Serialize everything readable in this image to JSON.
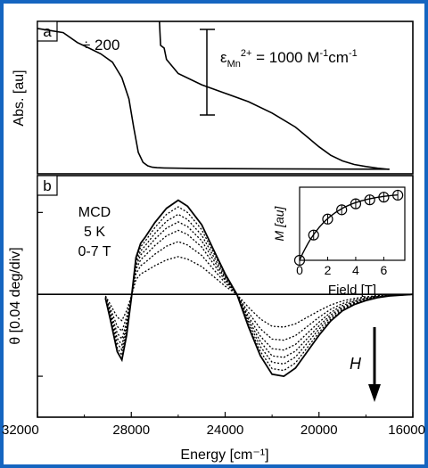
{
  "frame_color": "#1565c0",
  "chart_data": [
    {
      "panel": "a",
      "type": "line",
      "ylabel": "Abs. [au]",
      "xlim": [
        32000,
        16000
      ],
      "annotations": {
        "scale": "÷ 200",
        "epsilon_main": "ε",
        "epsilon_sub": "Mn",
        "epsilon_sup": "2+",
        "epsilon_eq": " = 1000 M",
        "epsilon_unit1_sup": "-1",
        "epsilon_unit2": "cm",
        "epsilon_unit2_sup": "-1"
      },
      "series": [
        {
          "x": [
            32000,
            30900,
            30300,
            29800,
            29300,
            28800,
            28400,
            28100,
            27900,
            27700,
            27500,
            27300,
            27100,
            26900,
            26600,
            25000,
            22000,
            19000,
            17000
          ],
          "y": [
            1.0,
            0.97,
            0.9,
            0.86,
            0.82,
            0.76,
            0.65,
            0.5,
            0.3,
            0.12,
            0.05,
            0.025,
            0.015,
            0.012,
            0.01,
            0.006,
            0.004,
            0.002,
            0.001
          ]
        },
        {
          "x": [
            26800,
            26750,
            26600,
            26500,
            26000,
            25000,
            24000,
            23000,
            22000,
            21000,
            20500,
            20000,
            19500,
            19000,
            18500,
            18000,
            17500,
            17000
          ],
          "y": [
            1.05,
            0.88,
            0.86,
            0.78,
            0.68,
            0.6,
            0.54,
            0.48,
            0.4,
            0.3,
            0.23,
            0.16,
            0.1,
            0.06,
            0.035,
            0.02,
            0.008,
            0.0
          ]
        }
      ],
      "ylim": [
        0,
        1.05
      ]
    },
    {
      "panel": "b",
      "type": "line",
      "xlabel": "Energy [cm⁻¹]",
      "ylabel": "θ [0.04 deg/div]",
      "xlim": [
        32000,
        16000
      ],
      "ylim": [
        -3.0,
        2.9
      ],
      "x_ticks": [
        32000,
        28000,
        24000,
        20000,
        16000
      ],
      "x_tick_labels": [
        "32000",
        "28000",
        "24000",
        "20000",
        "16000"
      ],
      "annotations": {
        "mcd": "MCD",
        "temp": "5 K",
        "field": "0-7 T",
        "h_label": "H"
      },
      "field_curves_scale": [
        1.0,
        0.93,
        0.85,
        0.77,
        0.68,
        0.56,
        0.4
      ],
      "x": [
        29100,
        28900,
        28600,
        28400,
        28200,
        28000,
        27800,
        27600,
        27400,
        27000,
        26500,
        26000,
        25600,
        25000,
        24500,
        24000,
        23500,
        23000,
        22500,
        22000,
        21500,
        21000,
        20500,
        20000,
        19500,
        19000,
        18500,
        18000,
        17500,
        17000,
        16500,
        16000
      ],
      "y_full": [
        -0.1,
        -0.6,
        -1.4,
        -1.6,
        -1.0,
        -0.1,
        0.9,
        1.25,
        1.4,
        1.75,
        2.1,
        2.3,
        2.15,
        1.7,
        1.1,
        0.5,
        0.0,
        -0.8,
        -1.5,
        -1.95,
        -2.0,
        -1.8,
        -1.4,
        -1.0,
        -0.65,
        -0.4,
        -0.25,
        -0.15,
        -0.08,
        -0.04,
        -0.02,
        0.0
      ],
      "inset": {
        "type": "scatter",
        "xlabel": "Field [T]",
        "ylabel": "M [au]",
        "xlim": [
          0,
          7.5
        ],
        "ylim": [
          0,
          1.1
        ],
        "x_ticks": [
          0,
          2,
          4,
          6
        ],
        "x_tick_labels": [
          "0",
          "2",
          "4",
          "6"
        ],
        "points_x": [
          0,
          1,
          2,
          3,
          4,
          5,
          6,
          7
        ],
        "points_y": [
          0.0,
          0.38,
          0.62,
          0.76,
          0.85,
          0.91,
          0.95,
          0.98
        ]
      }
    }
  ],
  "panel_labels": [
    "a",
    "b"
  ]
}
